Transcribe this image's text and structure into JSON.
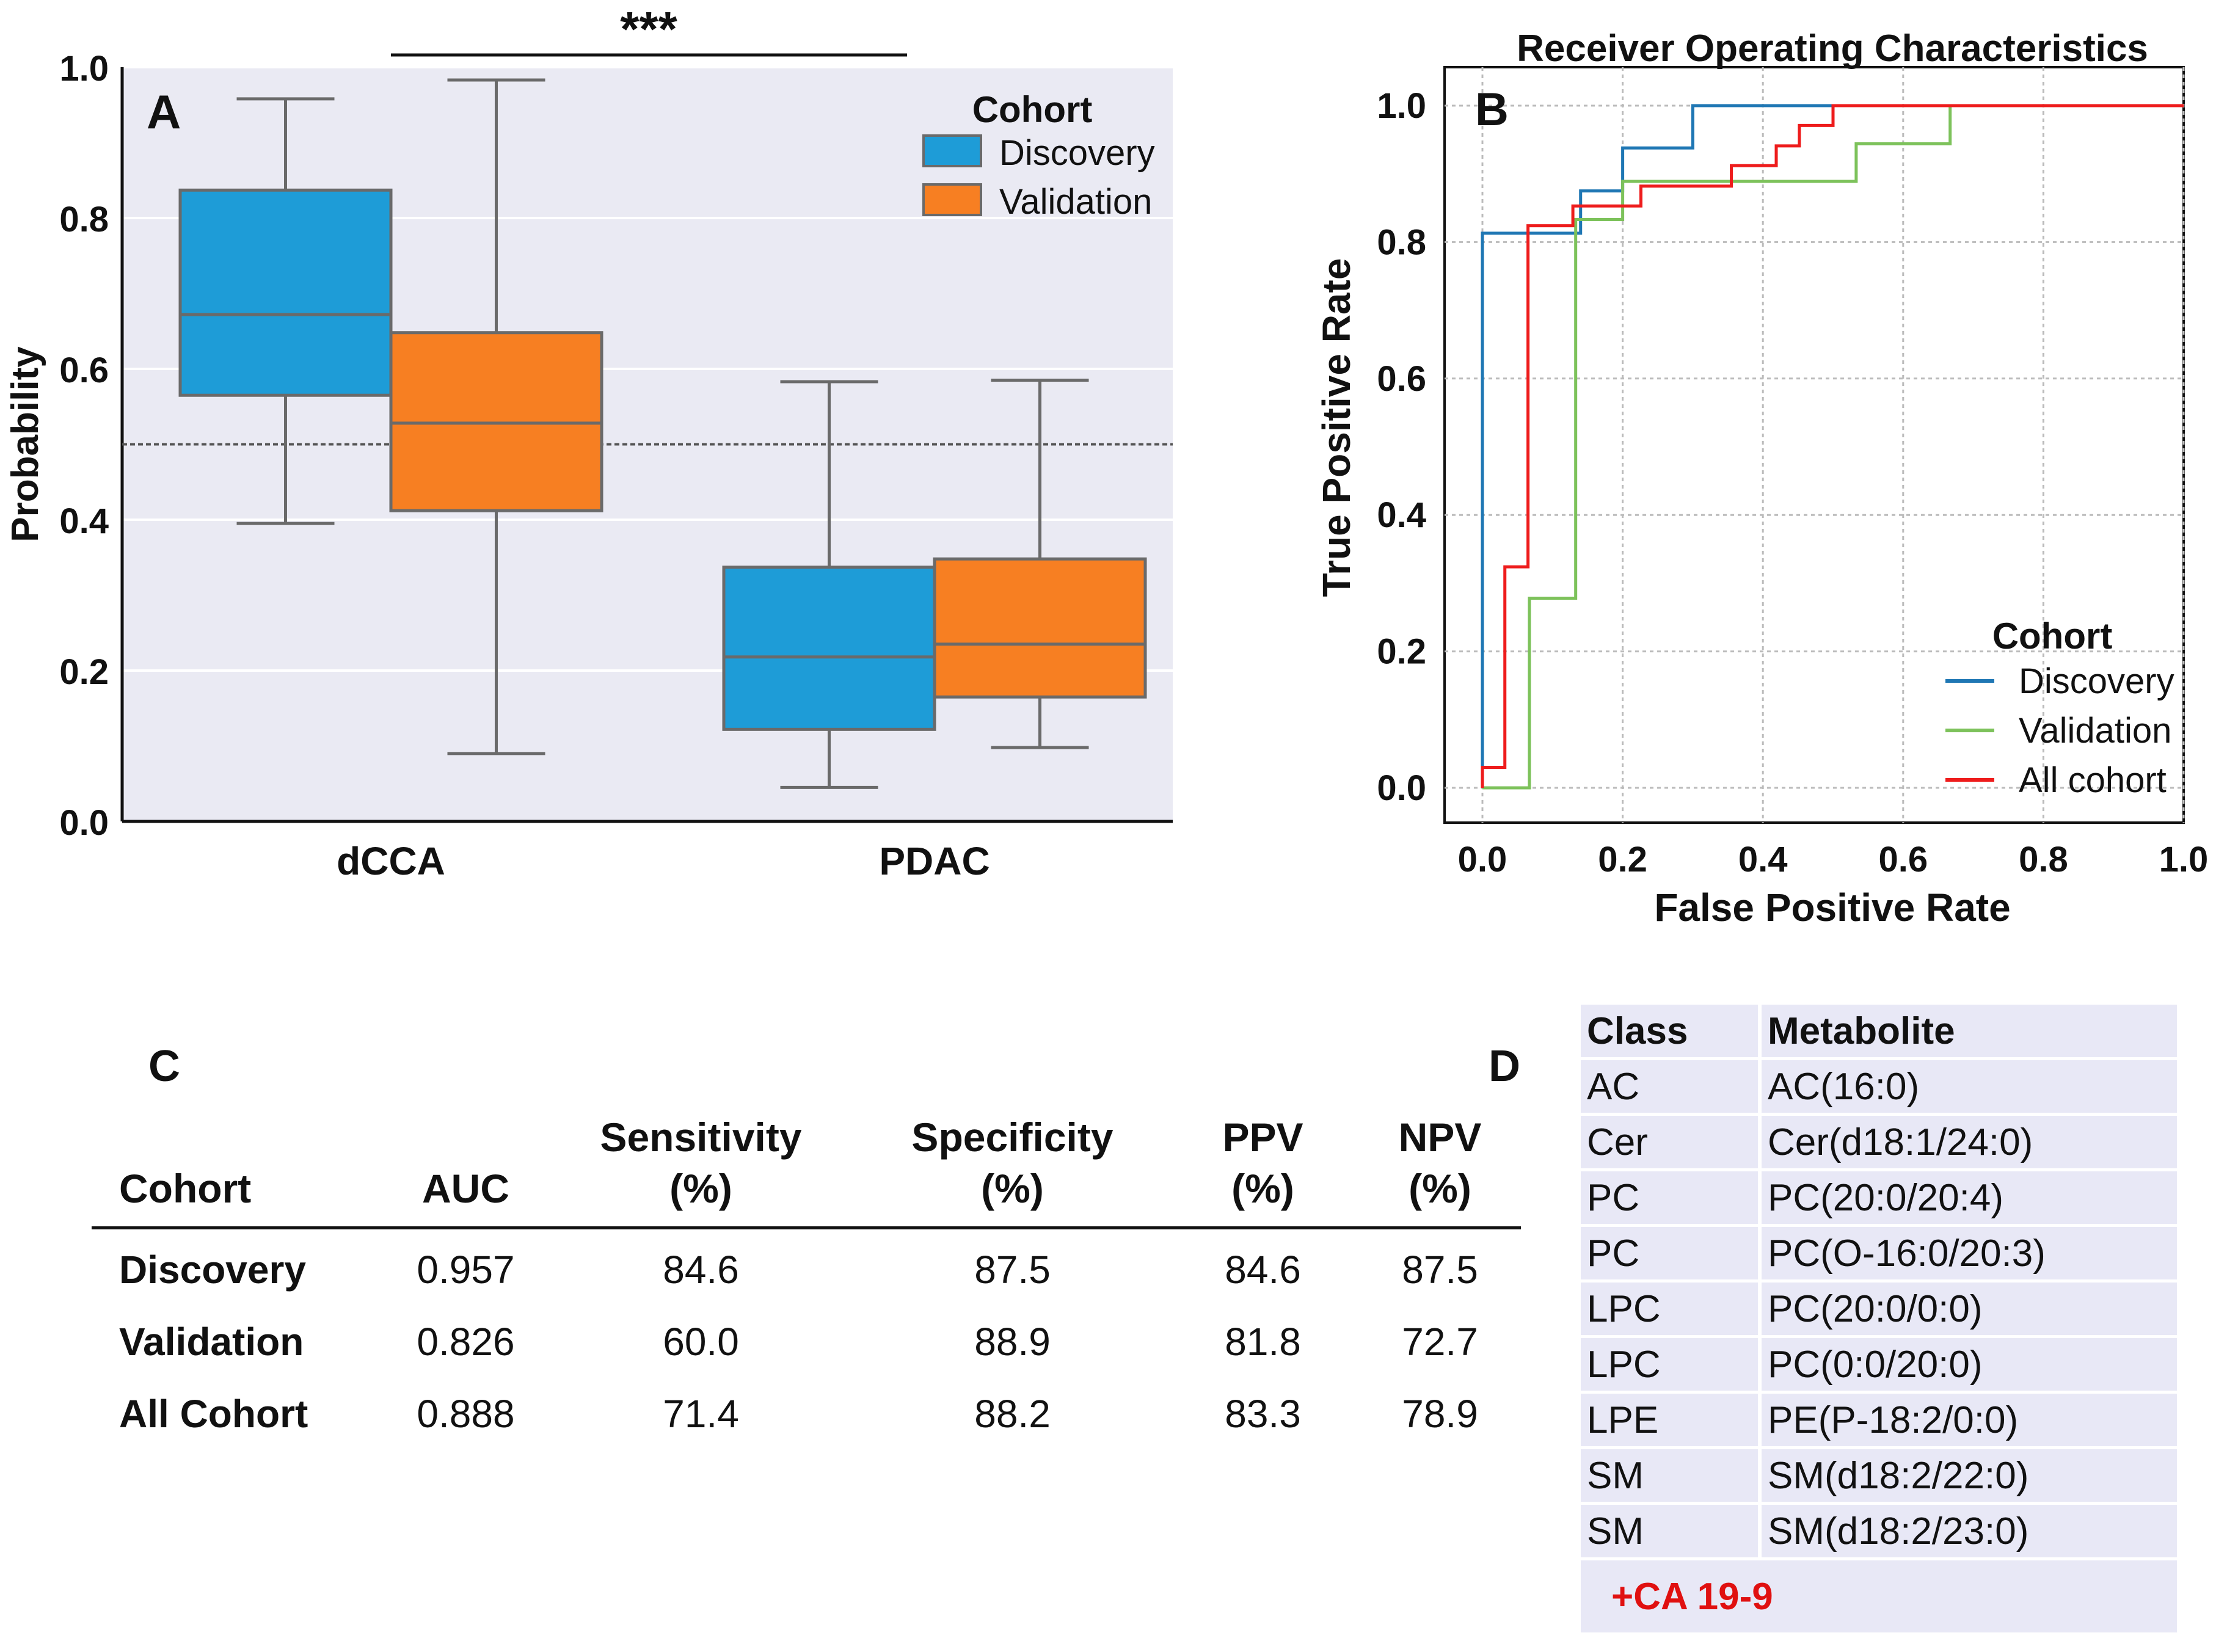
{
  "panel_a": {
    "letter": "A",
    "significance": "***",
    "legend_title": "Cohort",
    "colors": {
      "Discovery": "#1e9cd7",
      "Validation": "#f77f22",
      "background": "#eaeaf3"
    },
    "chart_data": {
      "type": "box",
      "ylabel": "Probability",
      "ylim": [
        0,
        1.0
      ],
      "yticks": [
        "0.0",
        "0.2",
        "0.4",
        "0.6",
        "0.8",
        "1.0"
      ],
      "threshold": 0.5,
      "categories": [
        "dCCA",
        "PDAC"
      ],
      "series": [
        {
          "name": "Discovery",
          "boxes": [
            {
              "category": "dCCA",
              "min": 0.395,
              "q1": 0.565,
              "median": 0.672,
              "q3": 0.837,
              "max": 0.958
            },
            {
              "category": "PDAC",
              "min": 0.045,
              "q1": 0.122,
              "median": 0.218,
              "q3": 0.337,
              "max": 0.583
            }
          ]
        },
        {
          "name": "Validation",
          "boxes": [
            {
              "category": "dCCA",
              "min": 0.09,
              "q1": 0.412,
              "median": 0.528,
              "q3": 0.648,
              "max": 0.983
            },
            {
              "category": "PDAC",
              "min": 0.098,
              "q1": 0.165,
              "median": 0.235,
              "q3": 0.348,
              "max": 0.585
            }
          ]
        }
      ]
    }
  },
  "panel_b": {
    "letter": "B",
    "legend_title": "Cohort",
    "colors": {
      "Discovery": "#1f77b4",
      "Validation": "#7dc25b",
      "All cohort": "#ee1c1c"
    },
    "chart_data": {
      "type": "line",
      "title": "Receiver Operating Characteristics",
      "xlabel": "False Positive Rate",
      "ylabel": "True Positive Rate",
      "xlim": [
        0,
        1.0
      ],
      "ylim": [
        0,
        1.0
      ],
      "xticks": [
        "0.0",
        "0.2",
        "0.4",
        "0.6",
        "0.8",
        "1.0"
      ],
      "yticks": [
        "0.0",
        "0.2",
        "0.4",
        "0.6",
        "0.8",
        "1.0"
      ],
      "series": [
        {
          "name": "Discovery",
          "x": [
            0,
            0,
            0.14,
            0.14,
            0.2,
            0.2,
            0.3,
            0.3,
            1.0
          ],
          "y": [
            0,
            0.813,
            0.813,
            0.875,
            0.875,
            0.938,
            0.938,
            1.0,
            1.0
          ]
        },
        {
          "name": "Validation",
          "x": [
            0,
            0,
            0.067,
            0.067,
            0.133,
            0.133,
            0.2,
            0.2,
            0.533,
            0.533,
            0.667,
            0.667,
            1.0
          ],
          "y": [
            0,
            0,
            0,
            0.278,
            0.278,
            0.833,
            0.833,
            0.889,
            0.889,
            0.944,
            0.944,
            1.0,
            1.0
          ]
        },
        {
          "name": "All cohort",
          "x": [
            0,
            0,
            0.032,
            0.032,
            0.065,
            0.065,
            0.129,
            0.129,
            0.226,
            0.226,
            0.355,
            0.355,
            0.419,
            0.419,
            0.452,
            0.452,
            0.5,
            0.5,
            1.0
          ],
          "y": [
            0,
            0.03,
            0.03,
            0.324,
            0.324,
            0.824,
            0.824,
            0.853,
            0.853,
            0.882,
            0.882,
            0.912,
            0.912,
            0.941,
            0.941,
            0.971,
            0.971,
            1.0,
            1.0
          ]
        }
      ]
    }
  },
  "panel_c": {
    "letter": "C",
    "columns": [
      {
        "line1": "Cohort",
        "line2": ""
      },
      {
        "line1": "AUC",
        "line2": ""
      },
      {
        "line1": "Sensitivity",
        "line2": "(%)"
      },
      {
        "line1": "Specificity",
        "line2": "(%)"
      },
      {
        "line1": "PPV",
        "line2": "(%)"
      },
      {
        "line1": "NPV",
        "line2": "(%)"
      }
    ],
    "rows": [
      [
        "Discovery",
        "0.957",
        "84.6",
        "87.5",
        "84.6",
        "87.5"
      ],
      [
        "Validation",
        "0.826",
        "60.0",
        "88.9",
        "81.8",
        "72.7"
      ],
      [
        "All Cohort",
        "0.888",
        "71.4",
        "88.2",
        "83.3",
        "78.9"
      ]
    ]
  },
  "panel_d": {
    "letter": "D",
    "headers": [
      "Class",
      "Metabolite"
    ],
    "rows": [
      [
        "AC",
        "AC(16:0)"
      ],
      [
        "Cer",
        "Cer(d18:1/24:0)"
      ],
      [
        "PC",
        "PC(20:0/20:4)"
      ],
      [
        "PC",
        "PC(O-16:0/20:3)"
      ],
      [
        "LPC",
        "PC(20:0/0:0)"
      ],
      [
        "LPC",
        "PC(0:0/20:0)"
      ],
      [
        "LPE",
        "PE(P-18:2/0:0)"
      ],
      [
        "SM",
        "SM(d18:2/22:0)"
      ],
      [
        "SM",
        "SM(d18:2/23:0)"
      ]
    ],
    "footer": "+CA 19-9",
    "footer_color": "#e01010"
  }
}
